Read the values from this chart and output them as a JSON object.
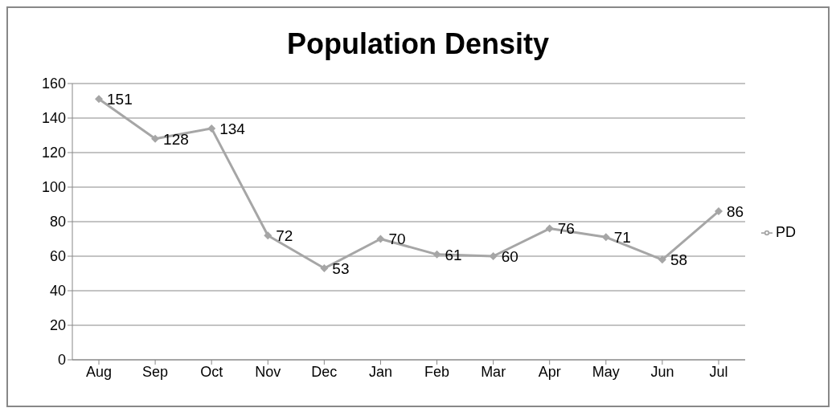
{
  "chart_data": {
    "type": "line",
    "title": "Population Density",
    "categories": [
      "Aug",
      "Sep",
      "Oct",
      "Nov",
      "Dec",
      "Jan",
      "Feb",
      "Mar",
      "Apr",
      "May",
      "Jun",
      "Jul"
    ],
    "series": [
      {
        "name": "PD",
        "color": "#a6a6a6",
        "values": [
          151,
          128,
          134,
          72,
          53,
          70,
          61,
          60,
          76,
          71,
          58,
          86
        ]
      }
    ],
    "ylim": [
      0,
      160
    ],
    "yticks": [
      0,
      20,
      40,
      60,
      80,
      100,
      120,
      140,
      160
    ],
    "grid": "y",
    "legend": "right",
    "marker": "diamond",
    "line_style": "solid",
    "data_labels": true
  }
}
